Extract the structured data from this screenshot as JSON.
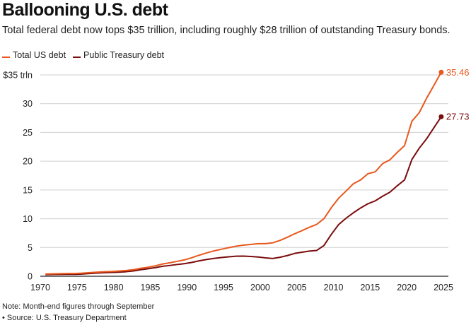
{
  "chart_data": {
    "type": "line",
    "title": "Ballooning U.S. debt",
    "subtitle": "Total federal debt now tops $35 trillion, including roughly $28 trillion of outstanding Treasury bonds.",
    "xlabel": "",
    "ylabel": "",
    "xlim": [
      1970,
      2025
    ],
    "ylim": [
      0,
      35
    ],
    "grid": true,
    "legend_position": "top-left",
    "x_ticks": [
      "1970",
      "1975",
      "1980",
      "1985",
      "1990",
      "1995",
      "2000",
      "2005",
      "2010",
      "2015",
      "2020",
      "2025"
    ],
    "y_ticks": [
      "0",
      "5",
      "10",
      "15",
      "20",
      "25",
      "30",
      "$35 trln"
    ],
    "x": [
      1970,
      1971,
      1972,
      1973,
      1974,
      1975,
      1976,
      1977,
      1978,
      1979,
      1980,
      1981,
      1982,
      1983,
      1984,
      1985,
      1986,
      1987,
      1988,
      1989,
      1990,
      1991,
      1992,
      1993,
      1994,
      1995,
      1996,
      1997,
      1998,
      1999,
      2000,
      2001,
      2002,
      2003,
      2004,
      2005,
      2006,
      2007,
      2008,
      2009,
      2010,
      2011,
      2012,
      2013,
      2014,
      2015,
      2016,
      2017,
      2018,
      2019,
      2020,
      2021,
      2022,
      2023,
      2024
    ],
    "series": [
      {
        "name": "Total US debt",
        "color": "#e8581c",
        "end_label": "35.46",
        "values": [
          0.38,
          0.41,
          0.44,
          0.47,
          0.48,
          0.54,
          0.63,
          0.71,
          0.78,
          0.83,
          0.91,
          1.0,
          1.14,
          1.38,
          1.57,
          1.82,
          2.13,
          2.35,
          2.6,
          2.86,
          3.23,
          3.67,
          4.06,
          4.41,
          4.69,
          4.97,
          5.22,
          5.41,
          5.53,
          5.66,
          5.67,
          5.81,
          6.23,
          6.78,
          7.38,
          7.93,
          8.51,
          9.01,
          10.02,
          11.91,
          13.56,
          14.79,
          16.07,
          16.74,
          17.82,
          18.15,
          19.57,
          20.24,
          21.52,
          22.72,
          26.95,
          28.43,
          30.93,
          33.17,
          35.46
        ]
      },
      {
        "name": "Public Treasury debt",
        "color": "#7a0c0c",
        "end_label": "27.73",
        "values": [
          0.28,
          0.3,
          0.32,
          0.34,
          0.34,
          0.39,
          0.47,
          0.55,
          0.62,
          0.66,
          0.71,
          0.79,
          0.92,
          1.14,
          1.31,
          1.51,
          1.74,
          1.88,
          2.05,
          2.19,
          2.41,
          2.69,
          2.92,
          3.1,
          3.25,
          3.38,
          3.48,
          3.5,
          3.44,
          3.35,
          3.2,
          3.09,
          3.3,
          3.59,
          3.97,
          4.17,
          4.38,
          4.48,
          5.35,
          7.27,
          8.98,
          10.07,
          11.02,
          11.87,
          12.6,
          13.11,
          13.91,
          14.61,
          15.73,
          16.75,
          20.3,
          22.25,
          23.88,
          25.81,
          27.73
        ]
      }
    ]
  },
  "footer": {
    "note": "Note: Month-end figures through September",
    "source": "• Source: U.S. Treasury Department"
  }
}
